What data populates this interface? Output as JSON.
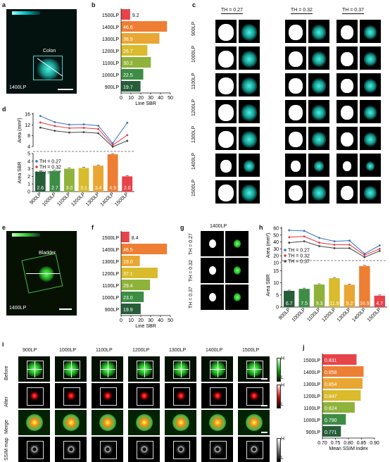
{
  "panels": {
    "a": {
      "letter": "a",
      "scale_hi": "H",
      "scale_lo": "L",
      "region": "Colon",
      "wavelength": "1400LP"
    },
    "b": {
      "letter": "b"
    },
    "c": {
      "letter": "c",
      "thresholds": [
        "TH = 0.27",
        "TH = 0.32",
        "TH = 0.37"
      ],
      "rows": [
        "900LP",
        "1000LP",
        "1100LP",
        "1200LP",
        "1300LP",
        "1400LP",
        "1500LP"
      ]
    },
    "d": {
      "letter": "d"
    },
    "e": {
      "letter": "e",
      "scale_hi": "H",
      "scale_lo": "L",
      "region": "Bladder",
      "wavelength": "1400LP"
    },
    "f": {
      "letter": "f"
    },
    "g": {
      "letter": "g",
      "title": "1400LP",
      "rows": [
        "TH = 0.27",
        "TH = 0.32",
        "TH = 0.37"
      ]
    },
    "h": {
      "letter": "h"
    },
    "i": {
      "letter": "i",
      "columns": [
        "900LP",
        "1000LP",
        "1100LP",
        "1200LP",
        "1300LP",
        "1400LP",
        "1500LP"
      ],
      "rows": [
        "Before",
        "After",
        "Merge",
        "SSIM map"
      ],
      "bar_hi": "H",
      "bar_lo": "L"
    },
    "j": {
      "letter": "j"
    }
  },
  "chart_data": [
    {
      "id": "b",
      "type": "bar",
      "orientation": "horizontal",
      "categories": [
        "1500LP",
        "1400LP",
        "1300LP",
        "1200LP",
        "1100LP",
        "1000LP",
        "900LP"
      ],
      "values": [
        9.2,
        46.6,
        38.9,
        26.7,
        30.2,
        22.5,
        19.7
      ],
      "labels": [
        "9.2",
        "46.6",
        "38.9",
        "26.7",
        "30.2",
        "22.5",
        "19.7"
      ],
      "xlabel": "Line SBR",
      "xlim": [
        0,
        50
      ],
      "xticks": [
        "0",
        "10",
        "20",
        "30",
        "40",
        "50"
      ],
      "colors": [
        "#e8434b",
        "#ee7e33",
        "#e9a632",
        "#d9bb2c",
        "#8fb33a",
        "#3e8d45",
        "#275e3a"
      ]
    },
    {
      "id": "d_area",
      "type": "line",
      "categories": [
        "900LP",
        "1000LP",
        "1100LP",
        "1200LP",
        "1300LP",
        "1400LP",
        "1500LP"
      ],
      "series": [
        {
          "name": "TH = 0.27",
          "values": [
            15.3,
            13.0,
            12.1,
            12.2,
            11.7,
            5.2,
            12.8
          ],
          "color": "#3a6fc4"
        },
        {
          "name": "TH = 0.32",
          "values": [
            12.9,
            11.6,
            10.8,
            10.9,
            10.5,
            4.5,
            8.2
          ],
          "color": "#e2373f"
        },
        {
          "name": "TH = 0.37",
          "values": [
            11.0,
            9.8,
            9.2,
            9.3,
            8.9,
            3.9,
            6.1
          ],
          "color": "#444444"
        }
      ],
      "ylabel": "Area (mm²)",
      "ylim": [
        4,
        16
      ],
      "yticks": [
        "4",
        "8",
        "12",
        "16"
      ]
    },
    {
      "id": "d_sbr",
      "type": "bar",
      "categories": [
        "900LP",
        "1000LP",
        "1100LP",
        "1200LP",
        "1300LP",
        "1400LP",
        "1500LP"
      ],
      "values": [
        2.6,
        2.7,
        3.0,
        3.1,
        3.4,
        4.9,
        2.0
      ],
      "labels": [
        "2.6",
        "2.7",
        "3.0",
        "3.1",
        "3.4",
        "4.9",
        "2.0"
      ],
      "ylabel": "Area SBR",
      "ylim": [
        0,
        5
      ],
      "yticks": [
        "0",
        "1",
        "2",
        "3",
        "4",
        "5"
      ],
      "colors": [
        "#275e3a",
        "#3e8d45",
        "#8fb33a",
        "#d9bb2c",
        "#e9a632",
        "#ee7e33",
        "#e8434b"
      ]
    },
    {
      "id": "f",
      "type": "bar",
      "orientation": "horizontal",
      "categories": [
        "1500LP",
        "1400LP",
        "1300LP",
        "1200LP",
        "1100LP",
        "1000LP",
        "900LP"
      ],
      "values": [
        8.4,
        46.5,
        19.0,
        37.1,
        29.4,
        23.0,
        19.9
      ],
      "labels": [
        "8.4",
        "46.5",
        "19.0",
        "37.1",
        "29.4",
        "23.0",
        "19.9"
      ],
      "xlabel": "Line SBR",
      "xlim": [
        0,
        50
      ],
      "xticks": [
        "0",
        "10",
        "20",
        "30",
        "40",
        "50"
      ],
      "colors": [
        "#e8434b",
        "#ee7e33",
        "#e9a632",
        "#d9bb2c",
        "#8fb33a",
        "#3e8d45",
        "#275e3a"
      ]
    },
    {
      "id": "h_area",
      "type": "line",
      "categories": [
        "900LP",
        "1000LP",
        "1100LP",
        "1200LP",
        "1300LP",
        "1400LP",
        "1500LP"
      ],
      "series": [
        {
          "name": "TH = 0.27",
          "values": [
            57,
            56,
            46,
            41,
            42,
            23,
            35
          ],
          "color": "#3a6fc4"
        },
        {
          "name": "TH = 0.32",
          "values": [
            47,
            48,
            39,
            36,
            36,
            21,
            30
          ],
          "color": "#e2373f"
        },
        {
          "name": "TH = 0.37",
          "values": [
            39,
            41,
            34,
            31,
            31,
            18,
            27
          ],
          "color": "#444444"
        }
      ],
      "ylabel": "Area (mm²)",
      "ylim": [
        10,
        60
      ],
      "yticks": [
        "10",
        "20",
        "30",
        "40",
        "50",
        "60"
      ]
    },
    {
      "id": "h_sbr",
      "type": "bar",
      "categories": [
        "900LP",
        "1000LP",
        "1100LP",
        "1200LP",
        "1300LP",
        "1400LP",
        "1500LP"
      ],
      "values": [
        6.7,
        7.5,
        9.3,
        11.9,
        9.2,
        16.9,
        4.7
      ],
      "labels": [
        "6.7",
        "7.5",
        "9.3",
        "11.9",
        "9.2",
        "16.9",
        "4.7"
      ],
      "ylabel": "Area SBR",
      "ylim": [
        0,
        18
      ],
      "yticks": [
        "0",
        "5",
        "10",
        "15"
      ],
      "colors": [
        "#275e3a",
        "#3e8d45",
        "#8fb33a",
        "#d9bb2c",
        "#e9a632",
        "#ee7e33",
        "#e8434b"
      ]
    },
    {
      "id": "j",
      "type": "bar",
      "orientation": "horizontal",
      "categories": [
        "1500LP",
        "1400LP",
        "1300LP",
        "1200LP",
        "1100LP",
        "1000LP",
        "900LP"
      ],
      "values": [
        0.831,
        0.858,
        0.854,
        0.847,
        0.824,
        0.79,
        0.771
      ],
      "labels": [
        "0.831",
        "0.858",
        "0.854",
        "0.847",
        "0.824",
        "0.790",
        "0.771"
      ],
      "xlabel": "Mean SSIM index",
      "xlim": [
        0.7,
        0.9
      ],
      "xticks": [
        "0.70",
        "0.75",
        "0.80",
        "0.85",
        "0.90"
      ],
      "colors": [
        "#e8434b",
        "#ee7e33",
        "#e9a632",
        "#d9bb2c",
        "#8fb33a",
        "#3e8d45",
        "#275e3a"
      ]
    }
  ]
}
